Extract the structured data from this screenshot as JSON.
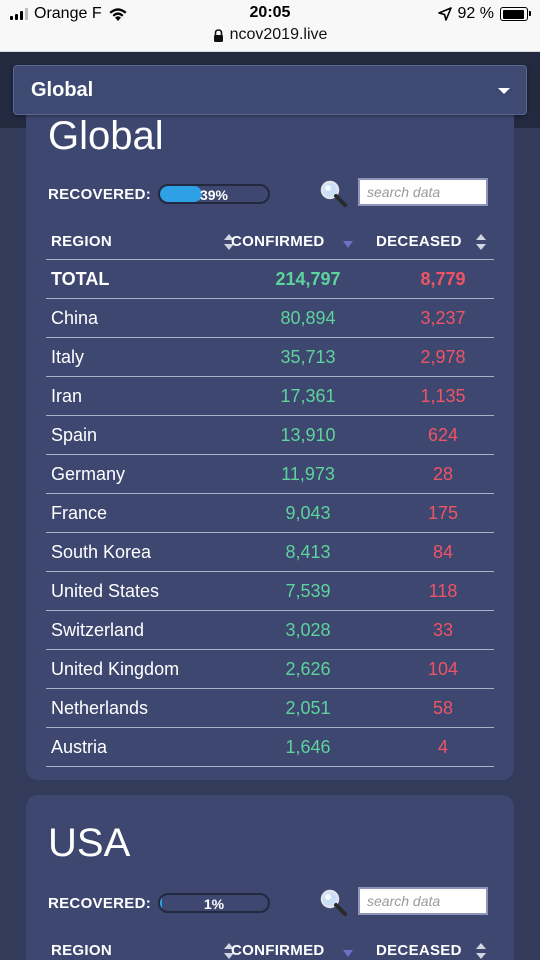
{
  "status_bar": {
    "carrier": "Orange F",
    "time": "20:05",
    "battery": "92 %",
    "battery_level": 0.92,
    "url": "ncov2019.live"
  },
  "region_select": {
    "selected": "Global"
  },
  "global": {
    "title": "Global",
    "recovered_label": "RECOVERED:",
    "recovered_pct": "39%",
    "recovered_value": 0.39,
    "search_placeholder": "search data",
    "columns": {
      "region": "REGION",
      "confirmed": "CONFIRMED",
      "deceased": "DECEASED"
    },
    "rows": [
      {
        "region": "TOTAL",
        "confirmed": "214,797",
        "deceased": "8,779"
      },
      {
        "region": "China",
        "confirmed": "80,894",
        "deceased": "3,237"
      },
      {
        "region": "Italy",
        "confirmed": "35,713",
        "deceased": "2,978"
      },
      {
        "region": "Iran",
        "confirmed": "17,361",
        "deceased": "1,135"
      },
      {
        "region": "Spain",
        "confirmed": "13,910",
        "deceased": "624"
      },
      {
        "region": "Germany",
        "confirmed": "11,973",
        "deceased": "28"
      },
      {
        "region": "France",
        "confirmed": "9,043",
        "deceased": "175"
      },
      {
        "region": "South Korea",
        "confirmed": "8,413",
        "deceased": "84"
      },
      {
        "region": "United States",
        "confirmed": "7,539",
        "deceased": "118"
      },
      {
        "region": "Switzerland",
        "confirmed": "3,028",
        "deceased": "33"
      },
      {
        "region": "United Kingdom",
        "confirmed": "2,626",
        "deceased": "104"
      },
      {
        "region": "Netherlands",
        "confirmed": "2,051",
        "deceased": "58"
      },
      {
        "region": "Austria",
        "confirmed": "1,646",
        "deceased": "4"
      }
    ]
  },
  "usa": {
    "title": "USA",
    "recovered_label": "RECOVERED:",
    "recovered_pct": "1%",
    "recovered_value": 0.01,
    "search_placeholder": "search data",
    "columns": {
      "region": "REGION",
      "confirmed": "CONFIRMED",
      "deceased": "DECEASED"
    }
  },
  "colors": {
    "confirmed": "#5ed39b",
    "deceased": "#ef5466",
    "card": "#3d4770",
    "page": "#323b5a",
    "progress": "#2ea0e6"
  },
  "icons": {
    "search": "magnifier-icon",
    "sort": "sort-arrows-icon"
  }
}
